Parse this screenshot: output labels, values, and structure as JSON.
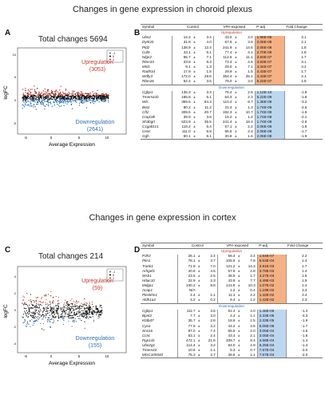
{
  "top": {
    "title": "Changes in gene expression in choroid plexus",
    "panel_a": {
      "letter": "A",
      "total": "Total changes 5694",
      "up_label": "Upregulation",
      "up_count": "(3053)",
      "down_label": "Downregulation",
      "down_count": "(2641)",
      "xlabel": "Average Expression",
      "ylabel": "logFC",
      "xticks": [
        "-5",
        "0",
        "5",
        "10"
      ],
      "yticks": [
        "10",
        "5",
        "0",
        "-5"
      ],
      "legend": [
        "-1",
        "0",
        "1"
      ]
    },
    "panel_b": {
      "letter": "B",
      "headers": [
        "Symbol",
        "Control",
        "VPA-exposed",
        "P-adj",
        "Fold Change"
      ],
      "up_label": "Upregulation",
      "down_label": "Downregulation",
      "up_rows": [
        [
          "Ubn2",
          "14.2",
          "3.4",
          "43.0",
          "2.0",
          "1.96E-08",
          "3.1"
        ],
        [
          "Dyrk1b",
          "31.8",
          "4.0",
          "67.6",
          "3.9",
          "2.06E-08",
          "2.1"
        ],
        [
          "Pld2",
          "138.9",
          "12.4",
          "241.9",
          "14.6",
          "2.06E-08",
          "1.8"
        ],
        [
          "Cul9",
          "43.1",
          "5.1",
          "77.4",
          "4.1",
          "2.70E-08",
          "1.8"
        ],
        [
          "Nlgn2",
          "65.7",
          "7.1",
          "112.6",
          "11.1",
          "3.83E-07",
          "1.7"
        ],
        [
          "Rbm33",
          "23.8",
          "8.3",
          "73.3",
          "4.6",
          "3.83E-07",
          "3.1"
        ],
        [
          "Micb",
          "9.1",
          "1.3",
          "29.0",
          "7.1",
          "4.34E-07",
          "3.2"
        ],
        [
          "Rad51d",
          "17.9",
          "1.5",
          "29.9",
          "1.5",
          "4.43E-07",
          "1.7"
        ],
        [
          "Wdfy3",
          "172.0",
          "28.6",
          "354.4",
          "25.1",
          "4.43E-07",
          "2.1"
        ],
        [
          "Rbm26",
          "52.4",
          "3.5",
          "79.0",
          "3.0",
          "5.22E-07",
          "1.5"
        ]
      ],
      "down_rows": [
        [
          "Cgbp1",
          "135.3",
          "3.3",
          "76.4",
          "2.6",
          "1.12E-10",
          "-1.8"
        ],
        [
          "Tmem41b",
          "165.8",
          "6.1",
          "64.3",
          "2.3",
          "5.22E-09",
          "-1.6"
        ],
        [
          "Wls",
          "359.5",
          "84.3",
          "110.4",
          "8.7",
          "1.35E-08",
          "-3.2"
        ],
        [
          "Bet1",
          "80.2",
          "11.2",
          "31.4",
          "1.3",
          "1.74E-08",
          "-2.5"
        ],
        [
          "Cft2",
          "309.5",
          "20.7",
          "192.3",
          "10.7",
          "1.74E-08",
          "-1.6"
        ],
        [
          "Coq10b",
          "39.9",
          "3.6",
          "19.2",
          "1.4",
          "1.74E-08",
          "-2.1"
        ],
        [
          "Sh3bgrl",
          "623.9",
          "35.5",
          "241.4",
          "18.4",
          "1.74E-08",
          "-2.6"
        ],
        [
          "C1galt1c1",
          "119.2",
          "5.4",
          "57.1",
          "2.2",
          "2.06E-08",
          "-1.6"
        ],
        [
          "Cenc",
          "111.0",
          "6.8",
          "66.6",
          "2.4",
          "2.06E-08",
          "-1.7"
        ],
        [
          "Ggh",
          "60.1",
          "8.1",
          "30.8",
          "1.6",
          "2.06E-08",
          "-1.9"
        ]
      ]
    }
  },
  "bottom": {
    "title": "Changes in gene expression in cortex",
    "panel_c": {
      "letter": "C",
      "total": "Total changes 214",
      "up_label": "Upregulation",
      "up_count": "(59)",
      "down_label": "Downregulation",
      "down_count": "(155)",
      "xlabel": "Average Expression",
      "ylabel": "logFC",
      "xticks": [
        "-5",
        "0",
        "5",
        "10"
      ],
      "yticks": [
        "4",
        "2",
        "0",
        "-2",
        "-4"
      ],
      "legend": [
        "-1",
        "0",
        "1"
      ]
    },
    "panel_d": {
      "letter": "D",
      "headers": [
        "Symbol",
        "Control",
        "VPA-exposed",
        "P-adj",
        "Fold Change"
      ],
      "up_label": "Upregulation",
      "down_label": "Downregulation",
      "up_rows": [
        [
          "P3h3",
          "26.1",
          "2.4",
          "56.4",
          "3.4",
          "1.54E-07",
          "2.2"
        ],
        [
          "Pkn1",
          "78.1",
          "3.7",
          "105.6",
          "7.8",
          "5.53E-04",
          "1.4"
        ],
        [
          "Trank1",
          "71.9",
          "7.0",
          "121.2",
          "14.3",
          "2.81E-03",
          "1.7"
        ],
        [
          "Arhgef1",
          "40.8",
          "4.5",
          "57.6",
          "2.8",
          "3.78E-03",
          "1.4"
        ],
        [
          "Wsb1",
          "23.6",
          "2.5",
          "38.9",
          "1.7",
          "4.27E-03",
          "1.5"
        ],
        [
          "Hdac10",
          "22.9",
          "2.3",
          "43.9",
          "7.7",
          "4.49E-03",
          "1.9"
        ],
        [
          "Mdga1",
          "100.2",
          "8.8",
          "141.8",
          "10.3",
          "1.07E-02",
          "1.4"
        ],
        [
          "Acap1",
          "N/A",
          "",
          "1.2",
          "0.4",
          "1.19E-02",
          "3.4"
        ],
        [
          "Pleskhn1",
          "4.4",
          "1.1",
          "11.1",
          "2.2",
          "1.42E-02",
          "2.4"
        ],
        [
          "Aldh1a3",
          "4.2",
          "0.2",
          "9.4",
          "1.2",
          "1.42E-02",
          "2.3"
        ]
      ],
      "down_rows": [
        [
          "Cgbp1",
          "111.7",
          "3.5",
          "81.4",
          "4.0",
          "1.48E-05",
          "-1.4"
        ],
        [
          "Bpnt2",
          "7.7",
          "3.0",
          "2.4",
          "1.1",
          "2.33E-05",
          "-3.3"
        ],
        [
          "Kbtbd7",
          "35.7",
          "2.8",
          "18.6",
          "1.5",
          "2.33E-05",
          "-1.9"
        ],
        [
          "Cyca",
          "77.5",
          "3.2",
          "44.2",
          "3.5",
          "5.06E-05",
          "-1.7"
        ],
        [
          "Snx16",
          "97.0",
          "7.4",
          "65.8",
          "2.0",
          "3.05E-04",
          "-1.5"
        ],
        [
          "Ccnc",
          "63.1",
          "2.4",
          "43.4",
          "2.1",
          "3.05E-04",
          "-1.5"
        ],
        [
          "Ppp1cb",
          "472.1",
          "21.6",
          "339.7",
          "9.4",
          "4.68E-04",
          "-1.4"
        ],
        [
          "Ube2g1",
          "114.4",
          "3.2",
          "84.0",
          "4.9",
          "6.25E-04",
          "-1.4"
        ],
        [
          "Tmem33",
          "10.6",
          "1.1",
          "5.3",
          "0.7",
          "7.67E-04",
          "-2.0"
        ],
        [
          "MGC109340",
          "75.3",
          "2.7",
          "38.6",
          "1.1",
          "7.67E-04",
          "-2.0"
        ]
      ]
    }
  },
  "colors": {
    "up": "#c0392b",
    "down": "#2f6fb0",
    "orange": "#f4b183",
    "blue": "#bdd7ee"
  }
}
